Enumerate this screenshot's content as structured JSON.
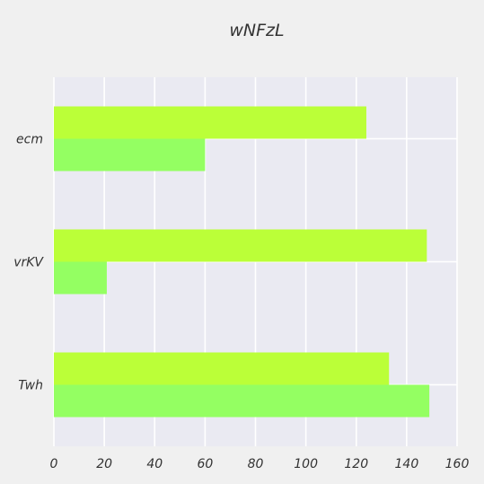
{
  "chart_data": {
    "type": "bar",
    "orientation": "horizontal",
    "title": "wNFzL",
    "xlabel": "",
    "ylabel": "",
    "categories": [
      "ecm",
      "vrKV",
      "Twh"
    ],
    "series": [
      {
        "values": [
          124,
          148,
          133
        ],
        "color": "#bbff38"
      },
      {
        "values": [
          60,
          21,
          149
        ],
        "color": "#94ff62"
      }
    ],
    "xlim": [
      0,
      160
    ],
    "xticks": [
      0,
      20,
      40,
      60,
      80,
      100,
      120,
      140,
      160
    ],
    "grid": true,
    "colors": {
      "background": "#f0f0f0",
      "plot_background": "#eaeaf2",
      "grid": "#ffffff",
      "text": "#333333"
    }
  }
}
